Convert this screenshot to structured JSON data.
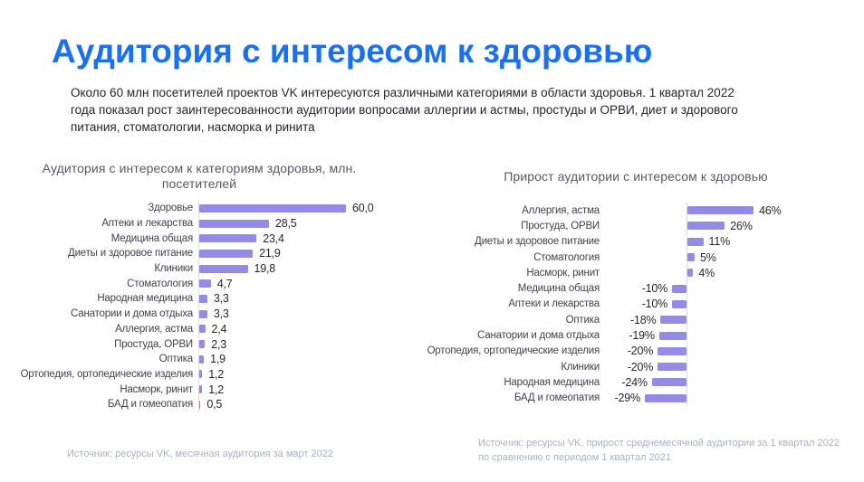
{
  "header": {
    "title": "Аудитория с интересом к здоровью",
    "description": "Около 60 млн посетителей проектов VK интересуются различными категориями в области здоровья. 1 квартал 2022 года показал рост заинтересованности аудитории вопросами аллергии и астмы, простуды и ОРВИ, диет и здорового питания, стоматологии, насморка и ринита"
  },
  "colors": {
    "accent_blue": "#1a70f2",
    "bar_purple": "#938be5",
    "axis_gray": "#d9dae2",
    "source_gray": "#a8b2c8"
  },
  "chart_data": [
    {
      "type": "bar",
      "orientation": "horizontal",
      "title": "Аудитория с интересом к категориям здоровья, млн. посетителей",
      "unit": "млн посетителей",
      "xlim": [
        0,
        60
      ],
      "grid": false,
      "legend": "none",
      "categories": [
        "Здоровье",
        "Аптеки и лекарства",
        "Медицина общая",
        "Диеты и здоровое питание",
        "Клиники",
        "Стоматология",
        "Народная медицина",
        "Санатории и дома отдыха",
        "Аллергия, астма",
        "Простуда, ОРВИ",
        "Оптика",
        "Ортопедия, ортопедические изделия",
        "Насморк, ринит",
        "БАД и гомеопатия"
      ],
      "values": [
        60.0,
        28.5,
        23.4,
        21.9,
        19.8,
        4.7,
        3.3,
        3.3,
        2.4,
        2.3,
        1.9,
        1.2,
        1.2,
        0.5
      ],
      "value_labels": [
        "60,0",
        "28,5",
        "23,4",
        "21,9",
        "19,8",
        "4,7",
        "3,3",
        "3,3",
        "2,4",
        "2,3",
        "1,9",
        "1,2",
        "1,2",
        "0,5"
      ],
      "source": "Источник: ресурсы VK, месячная аудитория за март 2022"
    },
    {
      "type": "bar",
      "orientation": "horizontal",
      "title": "Прирост аудитории с интересом к здоровью",
      "unit": "%",
      "xlim": [
        -29,
        46
      ],
      "grid": false,
      "legend": "none",
      "categories": [
        "Аллергия, астма",
        "Простуда, ОРВИ",
        "Диеты и здоровое питание",
        "Стоматология",
        "Насморк, ринит",
        "Медицина общая",
        "Аптеки и лекарства",
        "Оптика",
        "Санатории и дома отдыха",
        "Ортопедия, ортопедические изделия",
        "Клиники",
        "Народная медицина",
        "БАД и гомеопатия"
      ],
      "values": [
        46,
        26,
        11,
        5,
        4,
        -10,
        -10,
        -18,
        -19,
        -20,
        -20,
        -24,
        -29
      ],
      "value_labels": [
        "46%",
        "26%",
        "11%",
        "5%",
        "4%",
        "-10%",
        "-10%",
        "-18%",
        "-19%",
        "-20%",
        "-20%",
        "-24%",
        "-29%"
      ],
      "source": "Источник: ресурсы VK, прирост среднемесячной аудитории за 1 квартал 2022 по сравнению с периодом 1 квартал 2021"
    }
  ]
}
